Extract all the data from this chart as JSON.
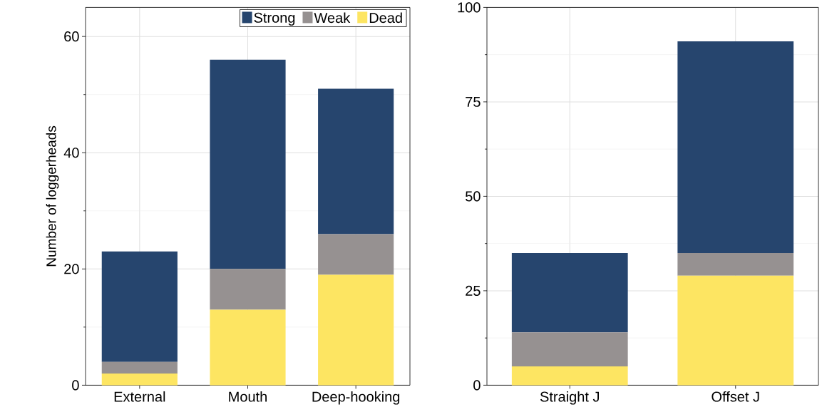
{
  "chart_data": [
    {
      "type": "bar",
      "stacked": true,
      "ylabel": "Number of loggerheads",
      "categories": [
        "External",
        "Mouth",
        "Deep-hooking"
      ],
      "series": [
        {
          "name": "Dead",
          "color": "#fde562",
          "values": [
            2,
            13,
            19
          ]
        },
        {
          "name": "Weak",
          "color": "#969191",
          "values": [
            2,
            7,
            7
          ]
        },
        {
          "name": "Strong",
          "color": "#26456e",
          "values": [
            19,
            36,
            25
          ]
        }
      ],
      "ylim": [
        0,
        65
      ],
      "yticks": [
        0,
        20,
        40,
        60
      ],
      "grid": true,
      "legend": "top right"
    },
    {
      "type": "bar",
      "stacked": true,
      "categories": [
        "Straight J",
        "Offset J"
      ],
      "series": [
        {
          "color": "#fde562",
          "values": [
            5,
            29
          ]
        },
        {
          "color": "#969191",
          "values": [
            9,
            6
          ]
        },
        {
          "color": "#26456e",
          "values": [
            21,
            56
          ]
        }
      ],
      "ylim": [
        0,
        100
      ],
      "yticks": [
        0,
        25,
        50,
        75,
        100
      ],
      "grid": true
    }
  ]
}
